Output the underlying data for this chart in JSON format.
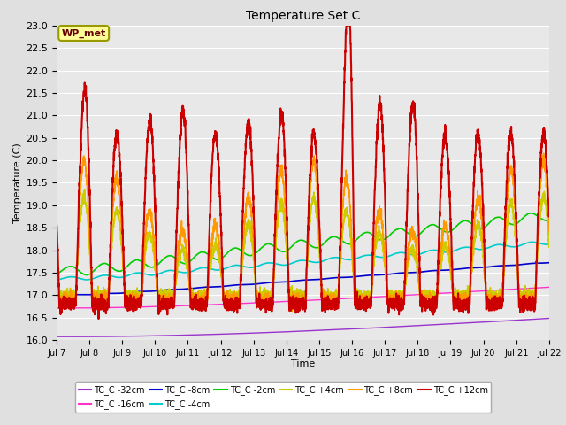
{
  "title": "Temperature Set C",
  "xlabel": "Time",
  "ylabel": "Temperature (C)",
  "ylim": [
    16.0,
    23.0
  ],
  "xlim": [
    0,
    360
  ],
  "xtick_labels": [
    "Jul 7",
    "Jul 8",
    "Jul 9",
    "Jul 10",
    "Jul 11",
    "Jul 12",
    "Jul 13",
    "Jul 14",
    "Jul 15",
    "Jul 16",
    "Jul 17",
    "Jul 18",
    "Jul 19",
    "Jul 20",
    "Jul 21",
    "Jul 22"
  ],
  "xtick_positions": [
    0,
    24,
    48,
    72,
    96,
    120,
    144,
    168,
    192,
    216,
    240,
    264,
    288,
    312,
    336,
    360
  ],
  "bg_color": "#e8e8e8",
  "series": {
    "TC_C -32cm": {
      "color": "#9933cc",
      "lw": 1.0
    },
    "TC_C -16cm": {
      "color": "#ff33cc",
      "lw": 1.0
    },
    "TC_C -8cm": {
      "color": "#0000cc",
      "lw": 1.2
    },
    "TC_C -4cm": {
      "color": "#00cccc",
      "lw": 1.2
    },
    "TC_C -2cm": {
      "color": "#00cc00",
      "lw": 1.2
    },
    "TC_C +4cm": {
      "color": "#cccc00",
      "lw": 1.2
    },
    "TC_C +8cm": {
      "color": "#ff9900",
      "lw": 1.2
    },
    "TC_C +12cm": {
      "color": "#cc0000",
      "lw": 1.5
    }
  }
}
